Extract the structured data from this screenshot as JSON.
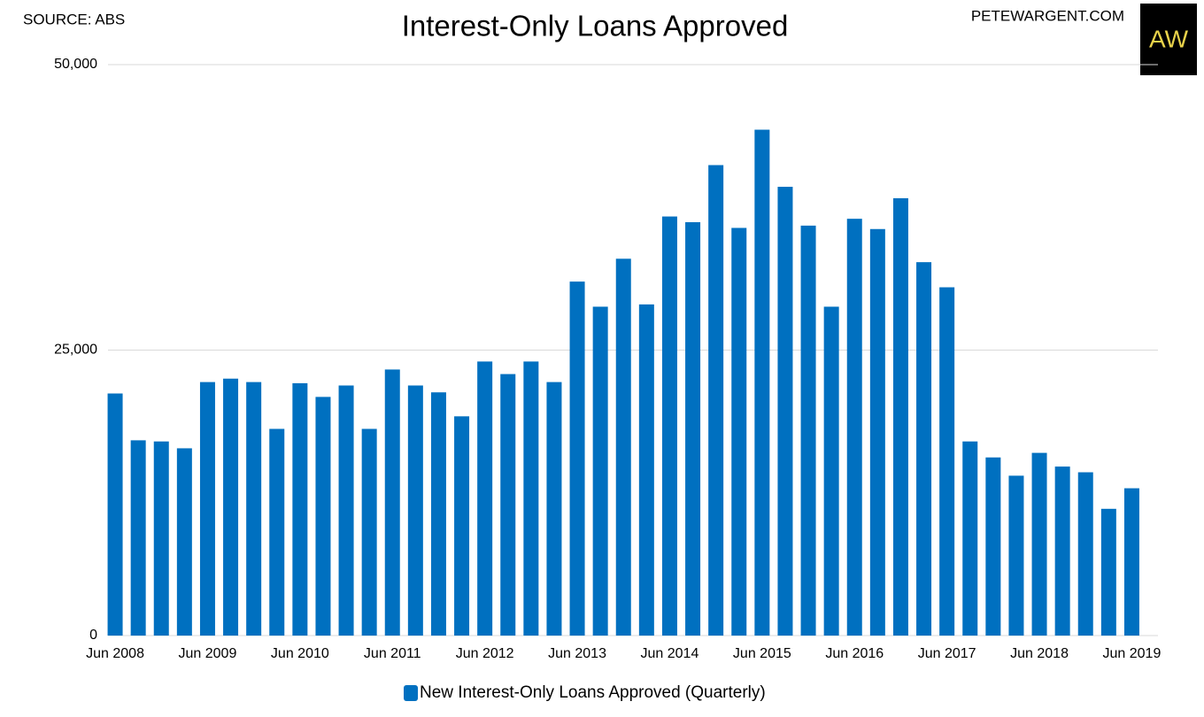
{
  "source": "SOURCE: ABS",
  "site": "PETEWARGENT.COM",
  "logo": "AW",
  "chart_data": {
    "type": "bar",
    "title": "Interest-Only Loans Approved",
    "categories": [
      "Jun 2008",
      null,
      null,
      null,
      "Jun 2009",
      null,
      null,
      null,
      "Jun 2010",
      null,
      null,
      null,
      "Jun 2011",
      null,
      null,
      null,
      "Jun 2012",
      null,
      null,
      null,
      "Jun 2013",
      null,
      null,
      null,
      "Jun 2014",
      null,
      null,
      null,
      "Jun 2015",
      null,
      null,
      null,
      "Jun 2016",
      null,
      null,
      null,
      "Jun 2017",
      null,
      null,
      null,
      "Jun 2018",
      null,
      null,
      null,
      "Jun 2019"
    ],
    "series": [
      {
        "name": "New Interest-Only Loans Approved (Quarterly)",
        "color": "#0070c0",
        "values": [
          21200,
          17100,
          17000,
          16400,
          22200,
          22500,
          22200,
          18100,
          22100,
          20900,
          21900,
          18100,
          23300,
          21900,
          21300,
          19200,
          24000,
          22900,
          24000,
          22200,
          31000,
          28800,
          33000,
          29000,
          36700,
          36200,
          41200,
          35700,
          44300,
          39300,
          35900,
          28800,
          36500,
          35600,
          38300,
          32700,
          30500,
          17000,
          15600,
          14000,
          16000,
          14800,
          14300,
          11100,
          12900
        ]
      }
    ],
    "ylim": [
      0,
      50000
    ],
    "yticks": [
      0,
      {
        "value": 25000,
        "label": "25,000"
      },
      {
        "value": 50000,
        "label": "50,000"
      }
    ],
    "grid": true,
    "legend": "bottom"
  }
}
